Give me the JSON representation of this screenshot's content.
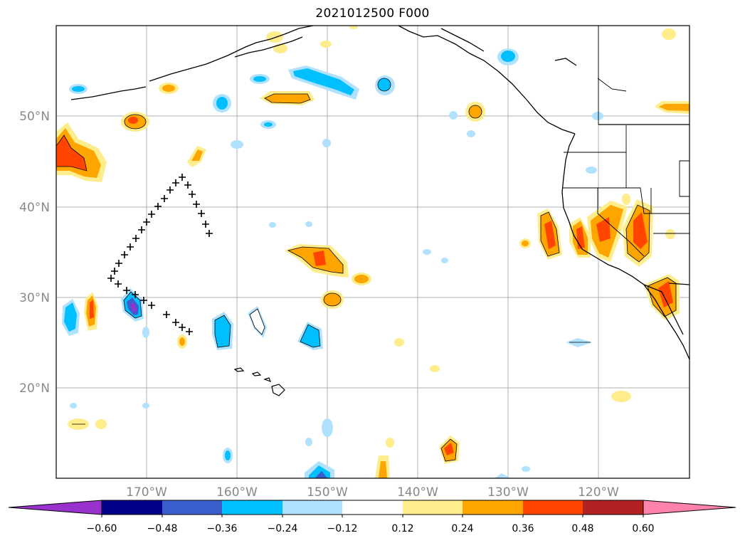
{
  "title": "2021012500 F000",
  "lat_labels": [
    "50°N",
    "40°N",
    "30°N",
    "20°N"
  ],
  "lon_labels": [
    "170°W",
    "160°W",
    "150°W",
    "140°W",
    "130°W",
    "120°W"
  ],
  "colorbar": {
    "colors": [
      "#9932cc",
      "#00008b",
      "#3a5fcd",
      "#00bfff",
      "#b0e2ff",
      "#ffffff",
      "#ffec8b",
      "#ffa500",
      "#ff4500",
      "#b22222",
      "#ff82ab"
    ],
    "tick_labels": [
      "−0.60",
      "−0.48",
      "−0.36",
      "−0.24",
      "−0.12",
      "0.12",
      "0.24",
      "0.36",
      "0.48",
      "0.60"
    ]
  },
  "colors": {
    "grid": "#b0b0b0",
    "coast": "#000000",
    "orange": "#ffa500",
    "yellow": "#ffec8b",
    "red": "#ff4500",
    "cyan": "#00bfff",
    "lightblue": "#b0e2ff",
    "blue": "#3a5fcd"
  }
}
